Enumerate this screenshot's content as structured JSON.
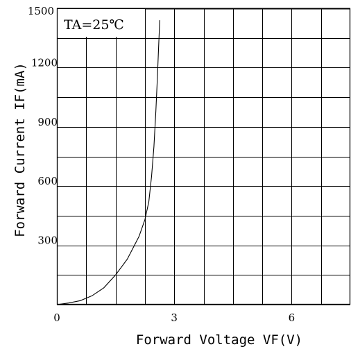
{
  "chart_data": {
    "type": "line",
    "xlabel": "Forward Voltage VF(V)",
    "ylabel": "Forward Current IF(mA)",
    "annotation": "TA=25℃",
    "xlim": [
      0,
      7.5
    ],
    "ylim": [
      0,
      1500
    ],
    "x_grid_step": 0.75,
    "y_grid_step": 150,
    "grid": true,
    "x_ticks": [
      {
        "value": 0,
        "label": "0"
      },
      {
        "value": 3,
        "label": "3"
      },
      {
        "value": 6,
        "label": "6"
      }
    ],
    "y_ticks": [
      {
        "value": 300,
        "label": "300"
      },
      {
        "value": 600,
        "label": "600"
      },
      {
        "value": 900,
        "label": "900"
      },
      {
        "value": 1200,
        "label": "1200"
      },
      {
        "value": 1500,
        "label": "1500"
      }
    ],
    "series": [
      {
        "points": [
          {
            "x": 0.0,
            "y": 0
          },
          {
            "x": 0.3,
            "y": 8
          },
          {
            "x": 0.6,
            "y": 20
          },
          {
            "x": 0.9,
            "y": 45
          },
          {
            "x": 1.2,
            "y": 85
          },
          {
            "x": 1.5,
            "y": 150
          },
          {
            "x": 1.8,
            "y": 230
          },
          {
            "x": 2.1,
            "y": 345
          },
          {
            "x": 2.25,
            "y": 430
          },
          {
            "x": 2.35,
            "y": 520
          },
          {
            "x": 2.42,
            "y": 650
          },
          {
            "x": 2.48,
            "y": 800
          },
          {
            "x": 2.53,
            "y": 980
          },
          {
            "x": 2.57,
            "y": 1150
          },
          {
            "x": 2.6,
            "y": 1300
          },
          {
            "x": 2.63,
            "y": 1440
          }
        ]
      }
    ]
  }
}
